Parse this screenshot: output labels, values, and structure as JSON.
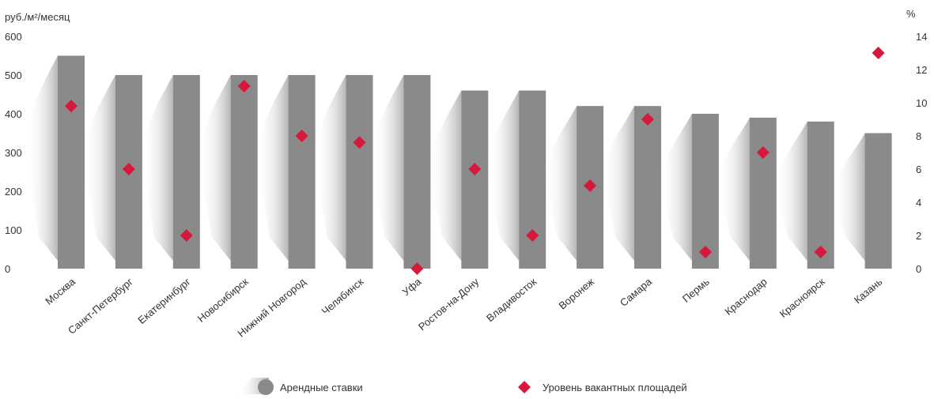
{
  "chart_data": {
    "type": "bar",
    "left_axis_unit": "руб./м²/месяц",
    "right_axis_unit": "%",
    "left_ylim": [
      0,
      600
    ],
    "left_ticks": [
      0,
      100,
      200,
      300,
      400,
      500,
      600
    ],
    "right_ylim": [
      0,
      14
    ],
    "right_ticks": [
      0,
      2,
      4,
      6,
      8,
      10,
      12,
      14
    ],
    "grid": false,
    "legend_position": "bottom",
    "categories": [
      "Москва",
      "Санкт-Петербург",
      "Екатеринбург",
      "Новосибирск",
      "Нижний Новгород",
      "Челябинск",
      "Уфа",
      "Ростов-на-Дону",
      "Владивосток",
      "Воронеж",
      "Самара",
      "Пермь",
      "Краснодар",
      "Красноярск",
      "Казань"
    ],
    "series": [
      {
        "name": "Арендные ставки",
        "axis": "left",
        "kind": "bar",
        "color": "#8a8a8a",
        "values": [
          550,
          500,
          500,
          500,
          500,
          500,
          500,
          460,
          460,
          420,
          420,
          400,
          390,
          380,
          350
        ]
      },
      {
        "name": "Уровень вакантных площадей",
        "axis": "right",
        "kind": "scatter",
        "marker": "diamond",
        "color": "#d6193a",
        "values": [
          9.8,
          6.0,
          2.0,
          11.0,
          8.0,
          7.6,
          0.0,
          6.0,
          2.0,
          5.0,
          9.0,
          1.0,
          7.0,
          1.0,
          13.0
        ]
      }
    ]
  }
}
